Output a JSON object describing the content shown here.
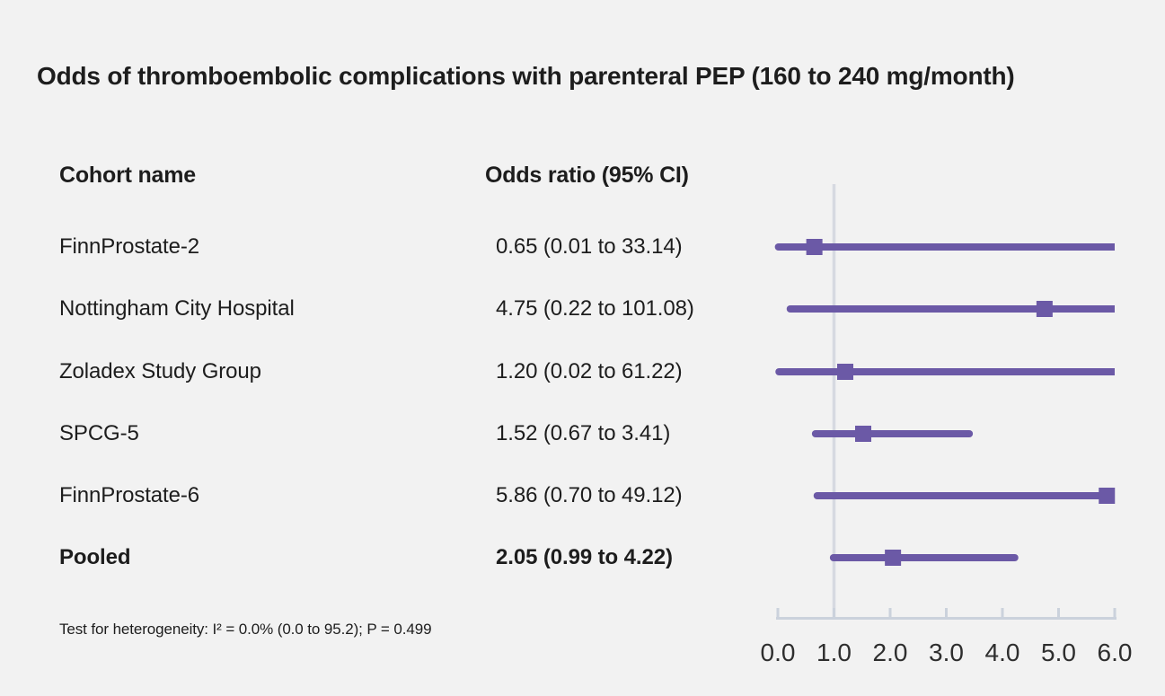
{
  "title": "Odds of thromboembolic complications with parenteral PEP (160 to 240 mg/month)",
  "table": {
    "col1_header": "Cohort name",
    "col2_header": "Odds ratio (95% CI)",
    "rows": [
      {
        "name": "FinnProstate-2",
        "or_text": "0.65 (0.01 to 33.14)",
        "bold": false
      },
      {
        "name": "Nottingham City Hospital",
        "or_text": "4.75 (0.22 to 101.08)",
        "bold": false
      },
      {
        "name": "Zoladex Study Group",
        "or_text": "1.20 (0.02 to 61.22)",
        "bold": false
      },
      {
        "name": "SPCG-5",
        "or_text": "1.52 (0.67 to 3.41)",
        "bold": false
      },
      {
        "name": "FinnProstate-6",
        "or_text": "5.86 (0.70 to 49.12)",
        "bold": false
      },
      {
        "name": "Pooled",
        "or_text": "2.05 (0.99 to 4.22)",
        "bold": true
      }
    ]
  },
  "footnote": "Test for heterogeneity: I² = 0.0% (0.0 to 95.2); P = 0.499",
  "colors": {
    "background": "#f2f2f2",
    "text": "#1d1d1d",
    "accent_purple": "#6b59a6",
    "axis_gray": "#cbd2dc",
    "reference_line": "#d6d9e1",
    "tick_label": "#2e2e2e"
  },
  "chart_data": {
    "type": "scatter",
    "subtype": "forest-plot",
    "title": "Odds of thromboembolic complications with parenteral PEP (160 to 240 mg/month)",
    "categories": [
      "FinnProstate-2",
      "Nottingham City Hospital",
      "Zoladex Study Group",
      "SPCG-5",
      "FinnProstate-6",
      "Pooled"
    ],
    "series": [
      {
        "name": "Odds ratio (95% CI)",
        "estimates": [
          0.65,
          4.75,
          1.2,
          1.52,
          5.86,
          2.05
        ],
        "ci_low": [
          0.01,
          0.22,
          0.02,
          0.67,
          0.7,
          0.99
        ],
        "ci_high": [
          33.14,
          101.08,
          61.22,
          3.41,
          49.12,
          4.22
        ]
      }
    ],
    "xlabel": "",
    "ylabel": "",
    "xlim": [
      0,
      6
    ],
    "x_ticks": [
      0.0,
      1.0,
      2.0,
      3.0,
      4.0,
      5.0,
      6.0
    ],
    "x_tick_labels": [
      "0.0",
      "1.0",
      "2.0",
      "3.0",
      "4.0",
      "5.0",
      "6.0"
    ],
    "reference_line_x": 1.0,
    "ci_clipped_to_xlim": true,
    "marker": "square",
    "grid": false,
    "legend": false
  }
}
